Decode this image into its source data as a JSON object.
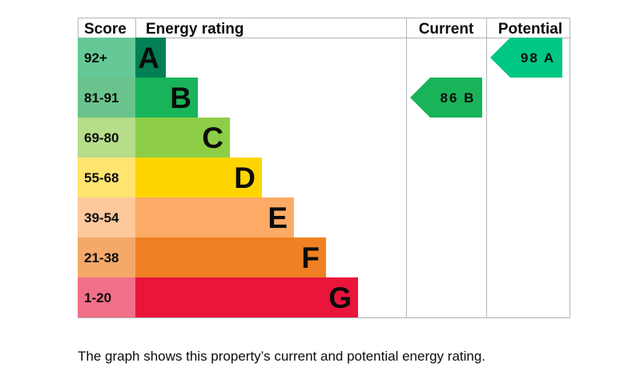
{
  "chart_data": {
    "type": "bar",
    "headers": {
      "score": "Score",
      "rating": "Energy rating",
      "current": "Current",
      "potential": "Potential"
    },
    "bands": [
      {
        "score": "92+",
        "letter": "A",
        "bar_color": "#008054",
        "score_color": "#64c997",
        "length": 1
      },
      {
        "score": "81-91",
        "letter": "B",
        "bar_color": "#19b459",
        "score_color": "#68c48c",
        "length": 2
      },
      {
        "score": "69-80",
        "letter": "C",
        "bar_color": "#8dce46",
        "score_color": "#b5dd8a",
        "length": 3
      },
      {
        "score": "55-68",
        "letter": "D",
        "bar_color": "#ffd500",
        "score_color": "#ffe46f",
        "length": 4
      },
      {
        "score": "39-54",
        "letter": "E",
        "bar_color": "#fcaa65",
        "score_color": "#fdc89c",
        "length": 5
      },
      {
        "score": "21-38",
        "letter": "F",
        "bar_color": "#ef8023",
        "score_color": "#f4a86a",
        "length": 6
      },
      {
        "score": "1-20",
        "letter": "G",
        "bar_color": "#e9153b",
        "score_color": "#f07089",
        "length": 7
      }
    ],
    "current": {
      "value": 86,
      "letter": "B",
      "label": "86 B",
      "color": "#19b459"
    },
    "potential": {
      "value": 98,
      "letter": "A",
      "label": "98 A",
      "color": "#00c781"
    }
  },
  "caption": "The graph shows this property’s current and potential energy rating."
}
